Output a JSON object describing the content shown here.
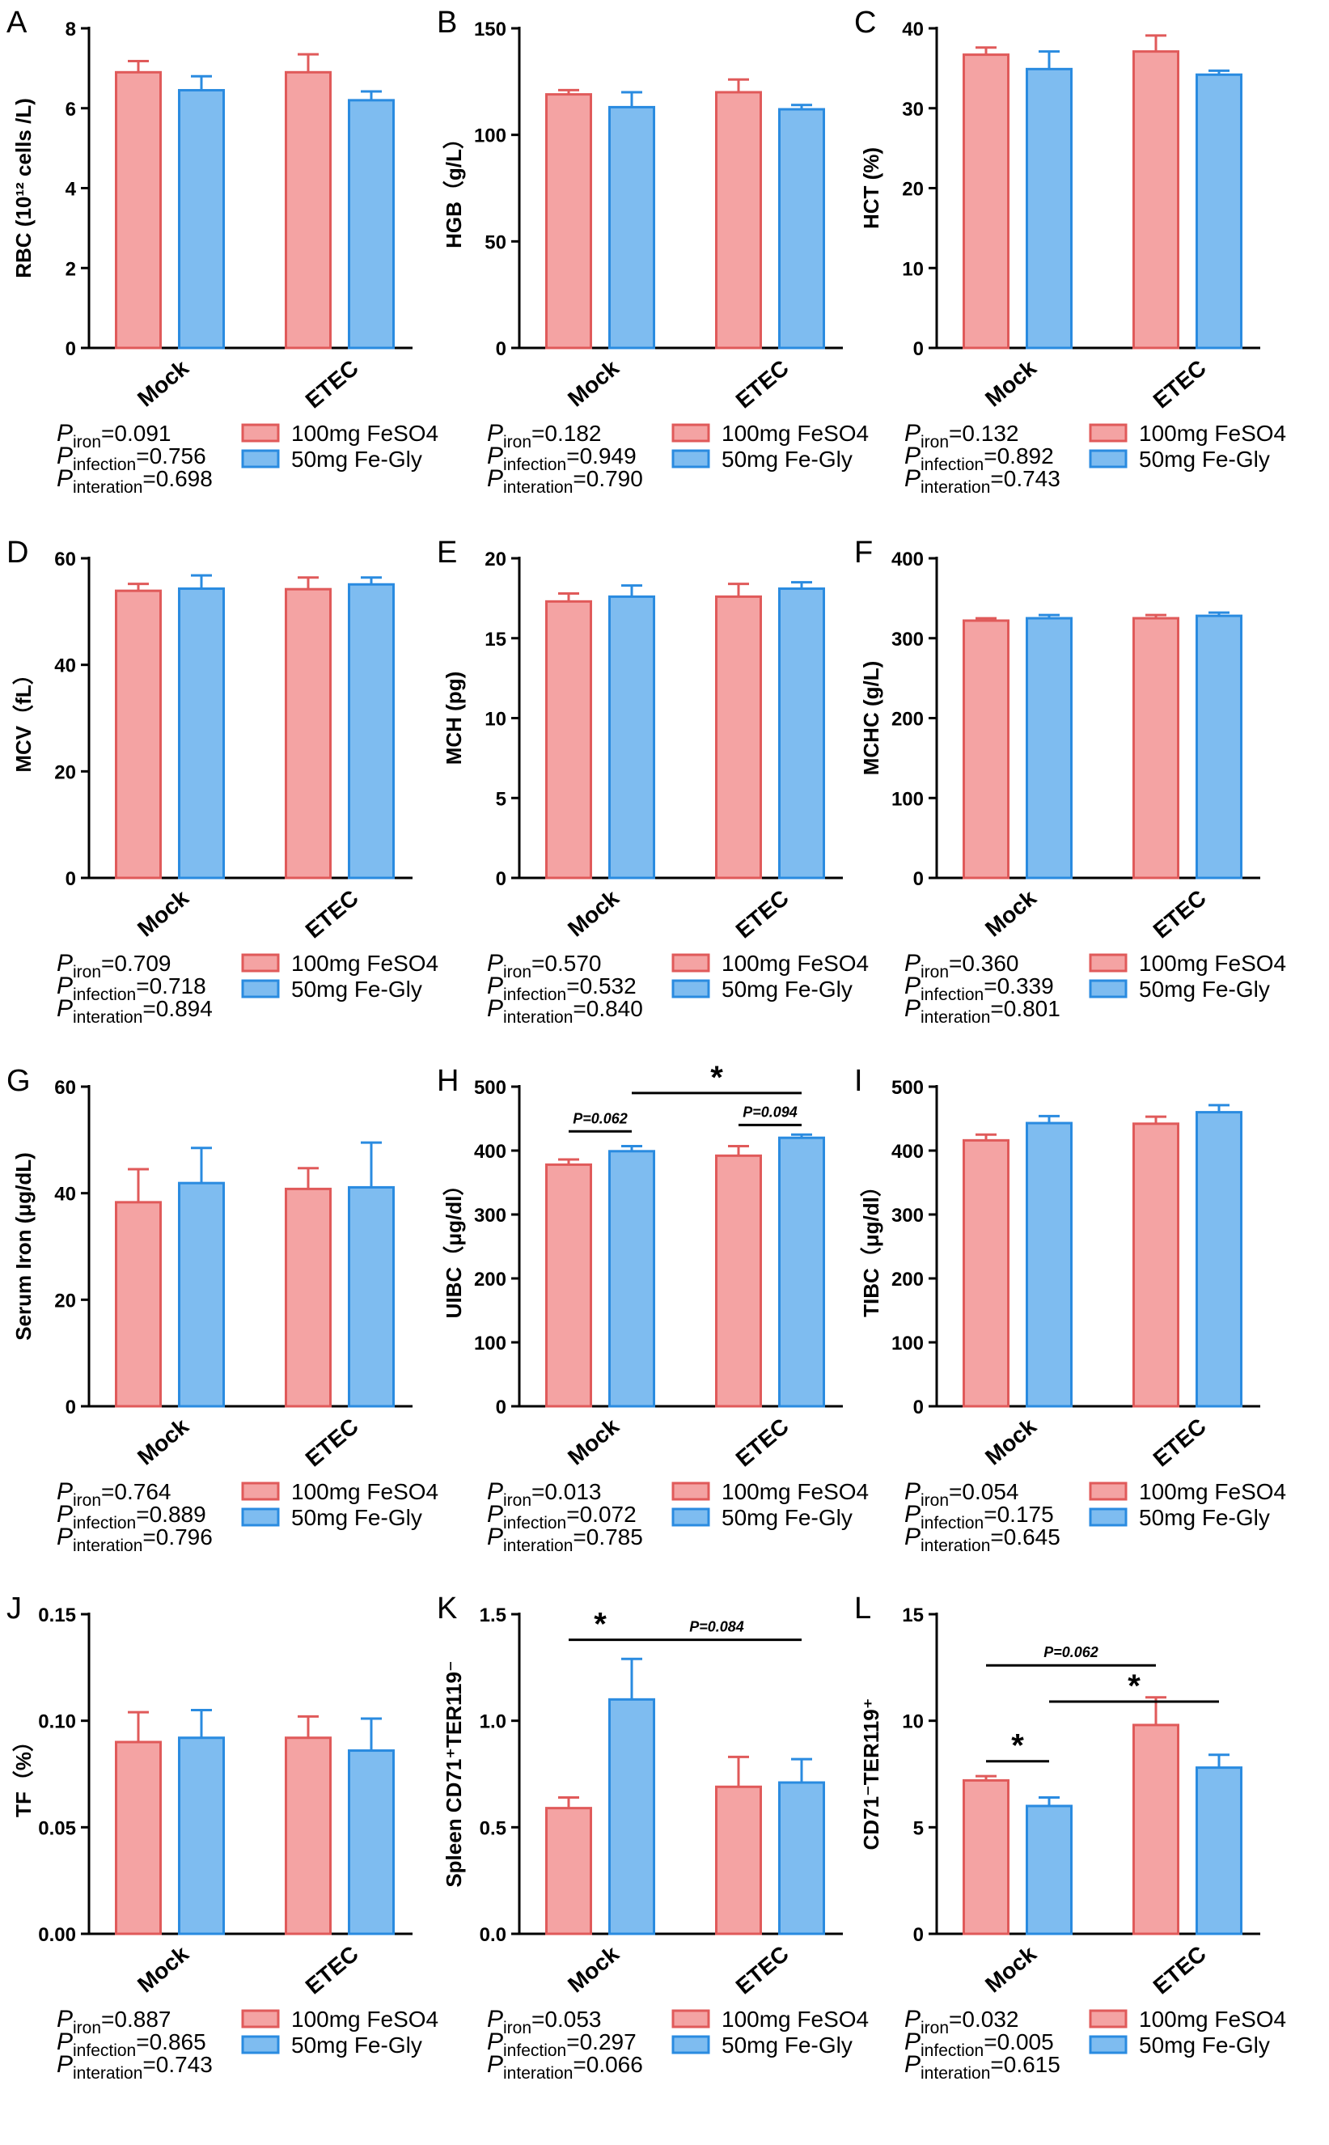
{
  "figure": {
    "legend": [
      {
        "label": "100mg FeSO4",
        "fill": "#F4A3A3",
        "stroke": "#E05A5A"
      },
      {
        "label": "50mg Fe-Gly",
        "fill": "#7EBCF0",
        "stroke": "#2A8BE0"
      }
    ],
    "categories": [
      "Mock",
      "ETEC"
    ],
    "p_labels": {
      "iron": "iron",
      "infection": "infection",
      "interaction": "interation",
      "p": "P"
    }
  },
  "chart_data": [
    {
      "id": "A",
      "type": "bar",
      "letter": "A",
      "ylabel": "RBC (10¹² cells /L)",
      "ylim": [
        0,
        8
      ],
      "yticks": [
        0,
        2,
        4,
        6,
        8
      ],
      "categories": [
        "Mock",
        "ETEC"
      ],
      "series": [
        {
          "name": "100mg FeSO4",
          "values": [
            6.9,
            6.9
          ],
          "errors": [
            0.28,
            0.45
          ]
        },
        {
          "name": "50mg Fe-Gly",
          "values": [
            6.45,
            6.2
          ],
          "errors": [
            0.35,
            0.22
          ]
        }
      ],
      "p_iron": "=0.091",
      "p_infection": "=0.756",
      "p_interaction": "=0.698",
      "annotations": []
    },
    {
      "id": "B",
      "type": "bar",
      "letter": "B",
      "ylabel": "HGB（g/L）",
      "ylim": [
        0,
        150
      ],
      "yticks": [
        0,
        50,
        100,
        150
      ],
      "categories": [
        "Mock",
        "ETEC"
      ],
      "series": [
        {
          "name": "100mg FeSO4",
          "values": [
            119,
            120
          ],
          "errors": [
            2,
            6
          ]
        },
        {
          "name": "50mg Fe-Gly",
          "values": [
            113,
            112
          ],
          "errors": [
            7,
            2
          ]
        }
      ],
      "p_iron": "=0.182",
      "p_infection": "=0.949",
      "p_interaction": "=0.790",
      "annotations": []
    },
    {
      "id": "C",
      "type": "bar",
      "letter": "C",
      "ylabel": "HCT (%)",
      "ylim": [
        0,
        40
      ],
      "yticks": [
        0,
        10,
        20,
        30,
        40
      ],
      "categories": [
        "Mock",
        "ETEC"
      ],
      "series": [
        {
          "name": "100mg FeSO4",
          "values": [
            36.7,
            37.1
          ],
          "errors": [
            0.9,
            2.0
          ]
        },
        {
          "name": "50mg Fe-Gly",
          "values": [
            34.9,
            34.2
          ],
          "errors": [
            2.2,
            0.5
          ]
        }
      ],
      "p_iron": "=0.132",
      "p_infection": "=0.892",
      "p_interaction": "=0.743",
      "annotations": []
    },
    {
      "id": "D",
      "type": "bar",
      "letter": "D",
      "ylabel": "MCV（fL）",
      "ylim": [
        0,
        60
      ],
      "yticks": [
        0,
        20,
        40,
        60
      ],
      "categories": [
        "Mock",
        "ETEC"
      ],
      "series": [
        {
          "name": "100mg FeSO4",
          "values": [
            53.9,
            54.2
          ],
          "errors": [
            1.3,
            2.2
          ]
        },
        {
          "name": "50mg Fe-Gly",
          "values": [
            54.3,
            55.1
          ],
          "errors": [
            2.5,
            1.3
          ]
        }
      ],
      "p_iron": "=0.709",
      "p_infection": "=0.718",
      "p_interaction": "=0.894",
      "annotations": []
    },
    {
      "id": "E",
      "type": "bar",
      "letter": "E",
      "ylabel": "MCH (pg)",
      "ylim": [
        0,
        20
      ],
      "yticks": [
        0,
        5,
        10,
        15,
        20
      ],
      "categories": [
        "Mock",
        "ETEC"
      ],
      "series": [
        {
          "name": "100mg FeSO4",
          "values": [
            17.3,
            17.6
          ],
          "errors": [
            0.5,
            0.8
          ]
        },
        {
          "name": "50mg Fe-Gly",
          "values": [
            17.6,
            18.1
          ],
          "errors": [
            0.7,
            0.4
          ]
        }
      ],
      "p_iron": "=0.570",
      "p_infection": "=0.532",
      "p_interaction": "=0.840",
      "annotations": []
    },
    {
      "id": "F",
      "type": "bar",
      "letter": "F",
      "ylabel": "MCHC (g/L)",
      "ylim": [
        0,
        400
      ],
      "yticks": [
        0,
        100,
        200,
        300,
        400
      ],
      "categories": [
        "Mock",
        "ETEC"
      ],
      "series": [
        {
          "name": "100mg FeSO4",
          "values": [
            322,
            325
          ],
          "errors": [
            3,
            4
          ]
        },
        {
          "name": "50mg Fe-Gly",
          "values": [
            325,
            328
          ],
          "errors": [
            4,
            4
          ]
        }
      ],
      "p_iron": "=0.360",
      "p_infection": "=0.339",
      "p_interaction": "=0.801",
      "annotations": []
    },
    {
      "id": "G",
      "type": "bar",
      "letter": "G",
      "ylabel": "Serum Iron (μg/dL)",
      "ylim": [
        0,
        60
      ],
      "yticks": [
        0,
        20,
        40,
        60
      ],
      "categories": [
        "Mock",
        "ETEC"
      ],
      "series": [
        {
          "name": "100mg FeSO4",
          "values": [
            38.3,
            40.8
          ],
          "errors": [
            6.2,
            3.9
          ]
        },
        {
          "name": "50mg Fe-Gly",
          "values": [
            41.9,
            41.1
          ],
          "errors": [
            6.6,
            8.4
          ]
        }
      ],
      "p_iron": "=0.764",
      "p_infection": "=0.889",
      "p_interaction": "=0.796",
      "annotations": []
    },
    {
      "id": "H",
      "type": "bar",
      "letter": "H",
      "ylabel": "UIBC（μg/dl）",
      "ylim": [
        0,
        500
      ],
      "yticks": [
        0,
        100,
        200,
        300,
        400,
        500
      ],
      "categories": [
        "Mock",
        "ETEC"
      ],
      "series": [
        {
          "name": "100mg FeSO4",
          "values": [
            378,
            392
          ],
          "errors": [
            8,
            15
          ]
        },
        {
          "name": "50mg Fe-Gly",
          "values": [
            399,
            420
          ],
          "errors": [
            8,
            5
          ]
        }
      ],
      "p_iron": "=0.013",
      "p_infection": "=0.072",
      "p_interaction": "=0.785",
      "annotations": [
        {
          "text": "P=0.062",
          "from": [
            0,
            0
          ],
          "to": [
            0,
            1
          ],
          "level": 430
        },
        {
          "text": "P=0.094",
          "from": [
            1,
            0
          ],
          "to": [
            1,
            1
          ],
          "level": 440
        },
        {
          "text": "*",
          "from": [
            0,
            1
          ],
          "to": [
            1,
            1
          ],
          "level": 490
        }
      ]
    },
    {
      "id": "I",
      "type": "bar",
      "letter": "I",
      "ylabel": "TIBC（μg/dl）",
      "ylim": [
        0,
        500
      ],
      "yticks": [
        0,
        100,
        200,
        300,
        400,
        500
      ],
      "categories": [
        "Mock",
        "ETEC"
      ],
      "series": [
        {
          "name": "100mg FeSO4",
          "values": [
            416,
            442
          ],
          "errors": [
            9,
            11
          ]
        },
        {
          "name": "50mg Fe-Gly",
          "values": [
            443,
            460
          ],
          "errors": [
            11,
            11
          ]
        }
      ],
      "p_iron": "=0.054",
      "p_infection": "=0.175",
      "p_interaction": "=0.645",
      "annotations": []
    },
    {
      "id": "J",
      "type": "bar",
      "letter": "J",
      "ylabel": "TF（%）",
      "ylim": [
        0,
        0.15
      ],
      "yticks": [
        0.0,
        0.05,
        0.1,
        0.15
      ],
      "ytick_labels": [
        "0.00",
        "0.05",
        "0.10",
        "0.15"
      ],
      "categories": [
        "Mock",
        "ETEC"
      ],
      "series": [
        {
          "name": "100mg FeSO4",
          "values": [
            0.09,
            0.092
          ],
          "errors": [
            0.014,
            0.01
          ]
        },
        {
          "name": "50mg Fe-Gly",
          "values": [
            0.092,
            0.086
          ],
          "errors": [
            0.013,
            0.015
          ]
        }
      ],
      "p_iron": "=0.887",
      "p_infection": "=0.865",
      "p_interaction": "=0.743",
      "annotations": []
    },
    {
      "id": "K",
      "type": "bar",
      "letter": "K",
      "ylabel": "Spleen CD71⁺TER119⁻",
      "ylim": [
        0,
        1.5
      ],
      "yticks": [
        0,
        0.5,
        1.0,
        1.5
      ],
      "ytick_labels": [
        "0.0",
        "0.5",
        "1.0",
        "1.5"
      ],
      "serif": true,
      "categories": [
        "Mock",
        "ETEC"
      ],
      "series": [
        {
          "name": "100mg FeSO4",
          "values": [
            0.59,
            0.69
          ],
          "errors": [
            0.05,
            0.14
          ]
        },
        {
          "name": "50mg Fe-Gly",
          "values": [
            1.1,
            0.71
          ],
          "errors": [
            0.19,
            0.11
          ]
        }
      ],
      "p_iron": "=0.053",
      "p_infection": "=0.297",
      "p_interaction": "=0.066",
      "annotations": [
        {
          "text": "*",
          "from": [
            0,
            0
          ],
          "to": [
            0,
            1
          ],
          "level": 1.38
        },
        {
          "text": "P=0.084",
          "from": [
            0,
            1
          ],
          "to": [
            1,
            1
          ],
          "level": 1.38
        }
      ]
    },
    {
      "id": "L",
      "type": "bar",
      "letter": "L",
      "ylabel": "CD71⁻TER119⁺",
      "ylim": [
        0,
        15
      ],
      "yticks": [
        0,
        5,
        10,
        15
      ],
      "serif": true,
      "categories": [
        "Mock",
        "ETEC"
      ],
      "series": [
        {
          "name": "100mg FeSO4",
          "values": [
            7.2,
            9.8
          ],
          "errors": [
            0.2,
            1.3
          ]
        },
        {
          "name": "50mg Fe-Gly",
          "values": [
            6.0,
            7.8
          ],
          "errors": [
            0.4,
            0.6
          ]
        }
      ],
      "p_iron": "=0.032",
      "p_infection": "=0.005",
      "p_interaction": "=0.615",
      "annotations": [
        {
          "text": "*",
          "from": [
            0,
            0
          ],
          "to": [
            0,
            1
          ],
          "level": 8.1
        },
        {
          "text": "P=0.062",
          "from": [
            0,
            0
          ],
          "to": [
            1,
            0
          ],
          "level": 12.6
        },
        {
          "text": "*",
          "from": [
            0,
            1
          ],
          "to": [
            1,
            1
          ],
          "level": 10.9
        }
      ]
    }
  ]
}
